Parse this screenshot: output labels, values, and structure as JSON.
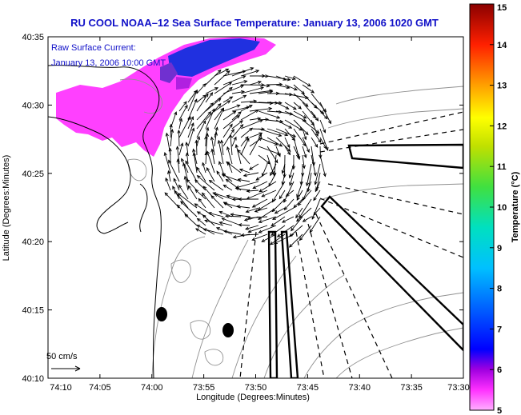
{
  "title": "RU COOL  NOAA–12  Sea Surface Temperature:  January 13, 2006 1020 GMT",
  "annotation": {
    "line1": "Raw Surface Current:",
    "line2": "January 13, 2006 10:00 GMT"
  },
  "scale_label": "50 cm/s",
  "map": {
    "xlabel": "Longitude (Degrees:Minutes)",
    "ylabel": "Latitude (Degrees:Minutes)",
    "x_ticks": [
      "74:10",
      "74:05",
      "74:00",
      "73:55",
      "73:50",
      "73:45",
      "73:40",
      "73:35",
      "73:30"
    ],
    "y_ticks": [
      "40:35",
      "40:30",
      "40:25",
      "40:20",
      "40:15",
      "40:10"
    ]
  },
  "colorbar": {
    "label": "Temperature (°C)",
    "min": 5,
    "max": 15,
    "ticks": [
      "5",
      "6",
      "7",
      "8",
      "9",
      "10",
      "11",
      "12",
      "13",
      "14",
      "15"
    ]
  },
  "colors": {
    "title": "#1010c8",
    "sst_warm_patch": "#ff40ff",
    "sst_cold_core": "#2030e0"
  }
}
